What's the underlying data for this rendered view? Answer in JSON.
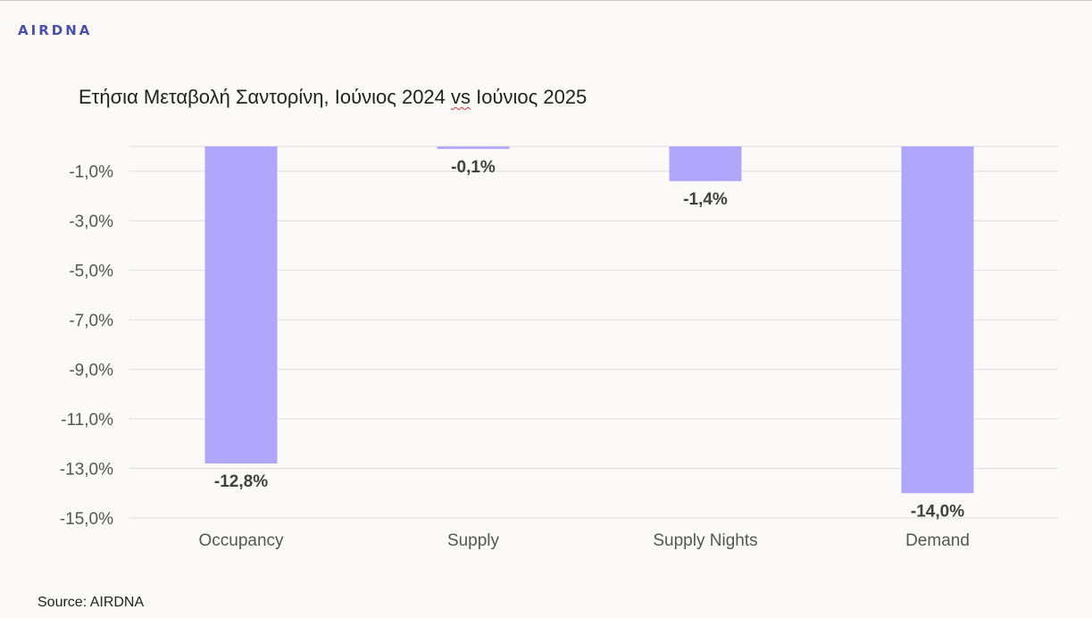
{
  "brand": {
    "logo_text": "AIRDNA"
  },
  "chart_data": {
    "type": "bar",
    "title": "Ετήσια Μεταβολή Σαντορίνη, Ιούνιος 2024 vs Ιούνιος 2025",
    "title_parts": {
      "before": "Ετήσια Μεταβολή Σαντορίνη, Ιούνιος 2024 ",
      "marked": "vs",
      "after": " Ιούνιος 2025"
    },
    "categories": [
      "Occupancy",
      "Supply",
      "Supply Nights",
      "Demand"
    ],
    "values": [
      -12.8,
      -0.1,
      -1.4,
      -14.0
    ],
    "data_labels": [
      "-12,8%",
      "-0,1%",
      "-1,4%",
      "-14,0%"
    ],
    "y_ticks": [
      -1,
      -3,
      -5,
      -7,
      -9,
      -11,
      -13,
      -15
    ],
    "y_tick_labels": [
      "-1,0%",
      "-3,0%",
      "-5,0%",
      "-7,0%",
      "-9,0%",
      "-11,0%",
      "-13,0%",
      "-15,0%"
    ],
    "ylim": [
      -15,
      0
    ],
    "grid": true,
    "bar_color": "#b0a6fb",
    "xlabel": "",
    "ylabel": ""
  },
  "source": "Source: AIRDNA"
}
